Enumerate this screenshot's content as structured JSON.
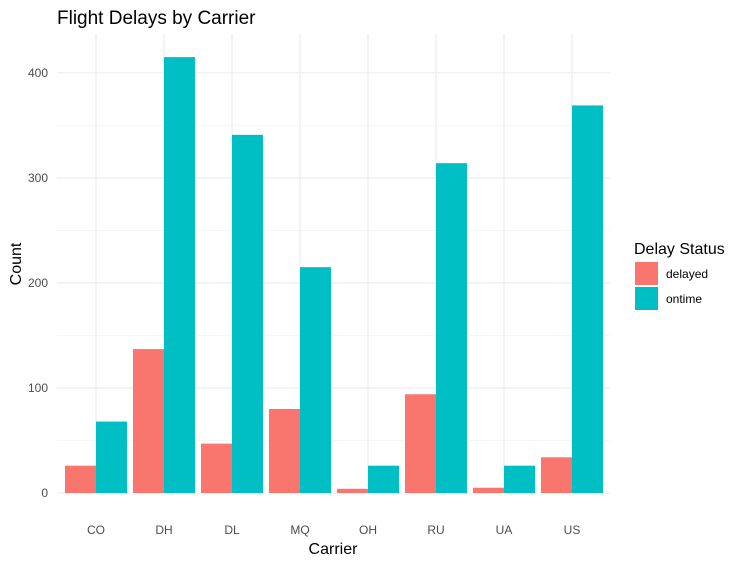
{
  "chart_data": {
    "type": "bar",
    "title": "Flight Delays by Carrier",
    "xlabel": "Carrier",
    "ylabel": "Count",
    "categories": [
      "CO",
      "DH",
      "DL",
      "MQ",
      "OH",
      "RU",
      "UA",
      "US"
    ],
    "series": [
      {
        "name": "delayed",
        "color": "#F8766D",
        "values": [
          26,
          137,
          47,
          80,
          4,
          94,
          5,
          34
        ]
      },
      {
        "name": "ontime",
        "color": "#00BFC4",
        "values": [
          68,
          415,
          341,
          215,
          26,
          314,
          26,
          369
        ]
      }
    ],
    "ylim": [
      0,
      437
    ],
    "yticks": [
      0,
      100,
      200,
      300,
      400
    ],
    "grid": true,
    "legend": {
      "title": "Delay Status",
      "position": "right"
    }
  }
}
